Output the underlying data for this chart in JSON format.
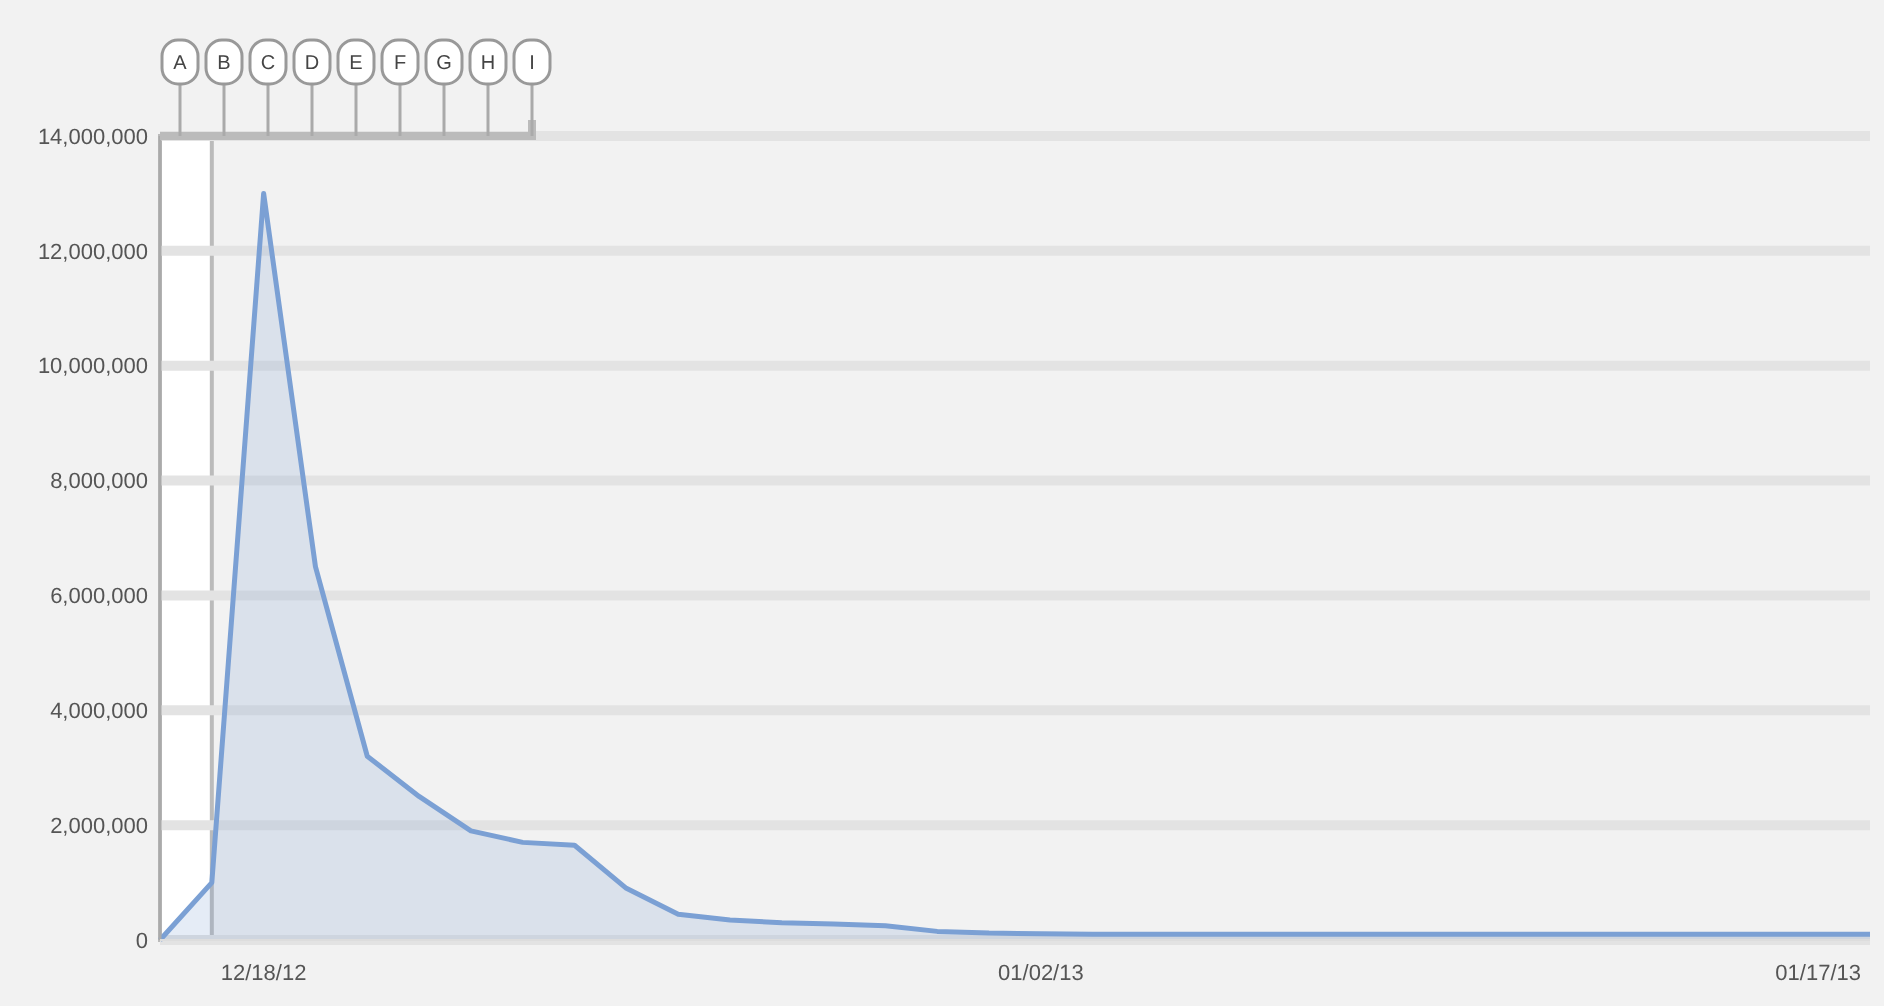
{
  "chart_data": {
    "type": "area",
    "x": [
      "2012-12-16",
      "2012-12-17",
      "2012-12-18",
      "2012-12-19",
      "2012-12-20",
      "2012-12-21",
      "2012-12-22",
      "2012-12-23",
      "2012-12-24",
      "2012-12-25",
      "2012-12-26",
      "2012-12-27",
      "2012-12-28",
      "2012-12-29",
      "2012-12-30",
      "2012-12-31",
      "2013-01-01",
      "2013-01-02",
      "2013-01-03",
      "2013-01-04",
      "2013-01-05",
      "2013-01-06",
      "2013-01-07",
      "2013-01-08",
      "2013-01-09",
      "2013-01-10",
      "2013-01-11",
      "2013-01-12",
      "2013-01-13",
      "2013-01-14",
      "2013-01-15",
      "2013-01-16",
      "2013-01-17",
      "2013-01-18"
    ],
    "series": [
      {
        "color": "#7ba0d4",
        "values": [
          0,
          1000000,
          13000000,
          6500000,
          3200000,
          2500000,
          1900000,
          1700000,
          1650000,
          900000,
          450000,
          350000,
          300000,
          280000,
          250000,
          150000,
          120000,
          110000,
          100000,
          100000,
          100000,
          100000,
          100000,
          100000,
          100000,
          100000,
          100000,
          100000,
          100000,
          100000,
          100000,
          100000,
          100000,
          100000
        ]
      }
    ],
    "xlim": [
      "2012-12-16",
      "2013-01-18"
    ],
    "xticks": [
      {
        "value": "2012-12-18",
        "label": "12/18/12"
      },
      {
        "value": "2013-01-02",
        "label": "01/02/13"
      },
      {
        "value": "2013-01-17",
        "label": "01/17/13"
      }
    ],
    "ylim": [
      0,
      14000000
    ],
    "yticks": [
      {
        "value": 0,
        "label": "0"
      },
      {
        "value": 2000000,
        "label": "2,000,000"
      },
      {
        "value": 4000000,
        "label": "4,000,000"
      },
      {
        "value": 6000000,
        "label": "6,000,000"
      },
      {
        "value": 8000000,
        "label": "8,000,000"
      },
      {
        "value": 10000000,
        "label": "10,000,000"
      },
      {
        "value": 12000000,
        "label": "12,000,000"
      },
      {
        "value": 14000000,
        "label": "14,000,000"
      }
    ],
    "grid": "y",
    "bands": [
      {
        "axis": "x",
        "from": "2012-12-16",
        "to": "2012-12-17",
        "color": "#ffffff"
      }
    ],
    "annotations": [
      "A",
      "B",
      "C",
      "D",
      "E",
      "F",
      "G",
      "H",
      "I"
    ]
  }
}
